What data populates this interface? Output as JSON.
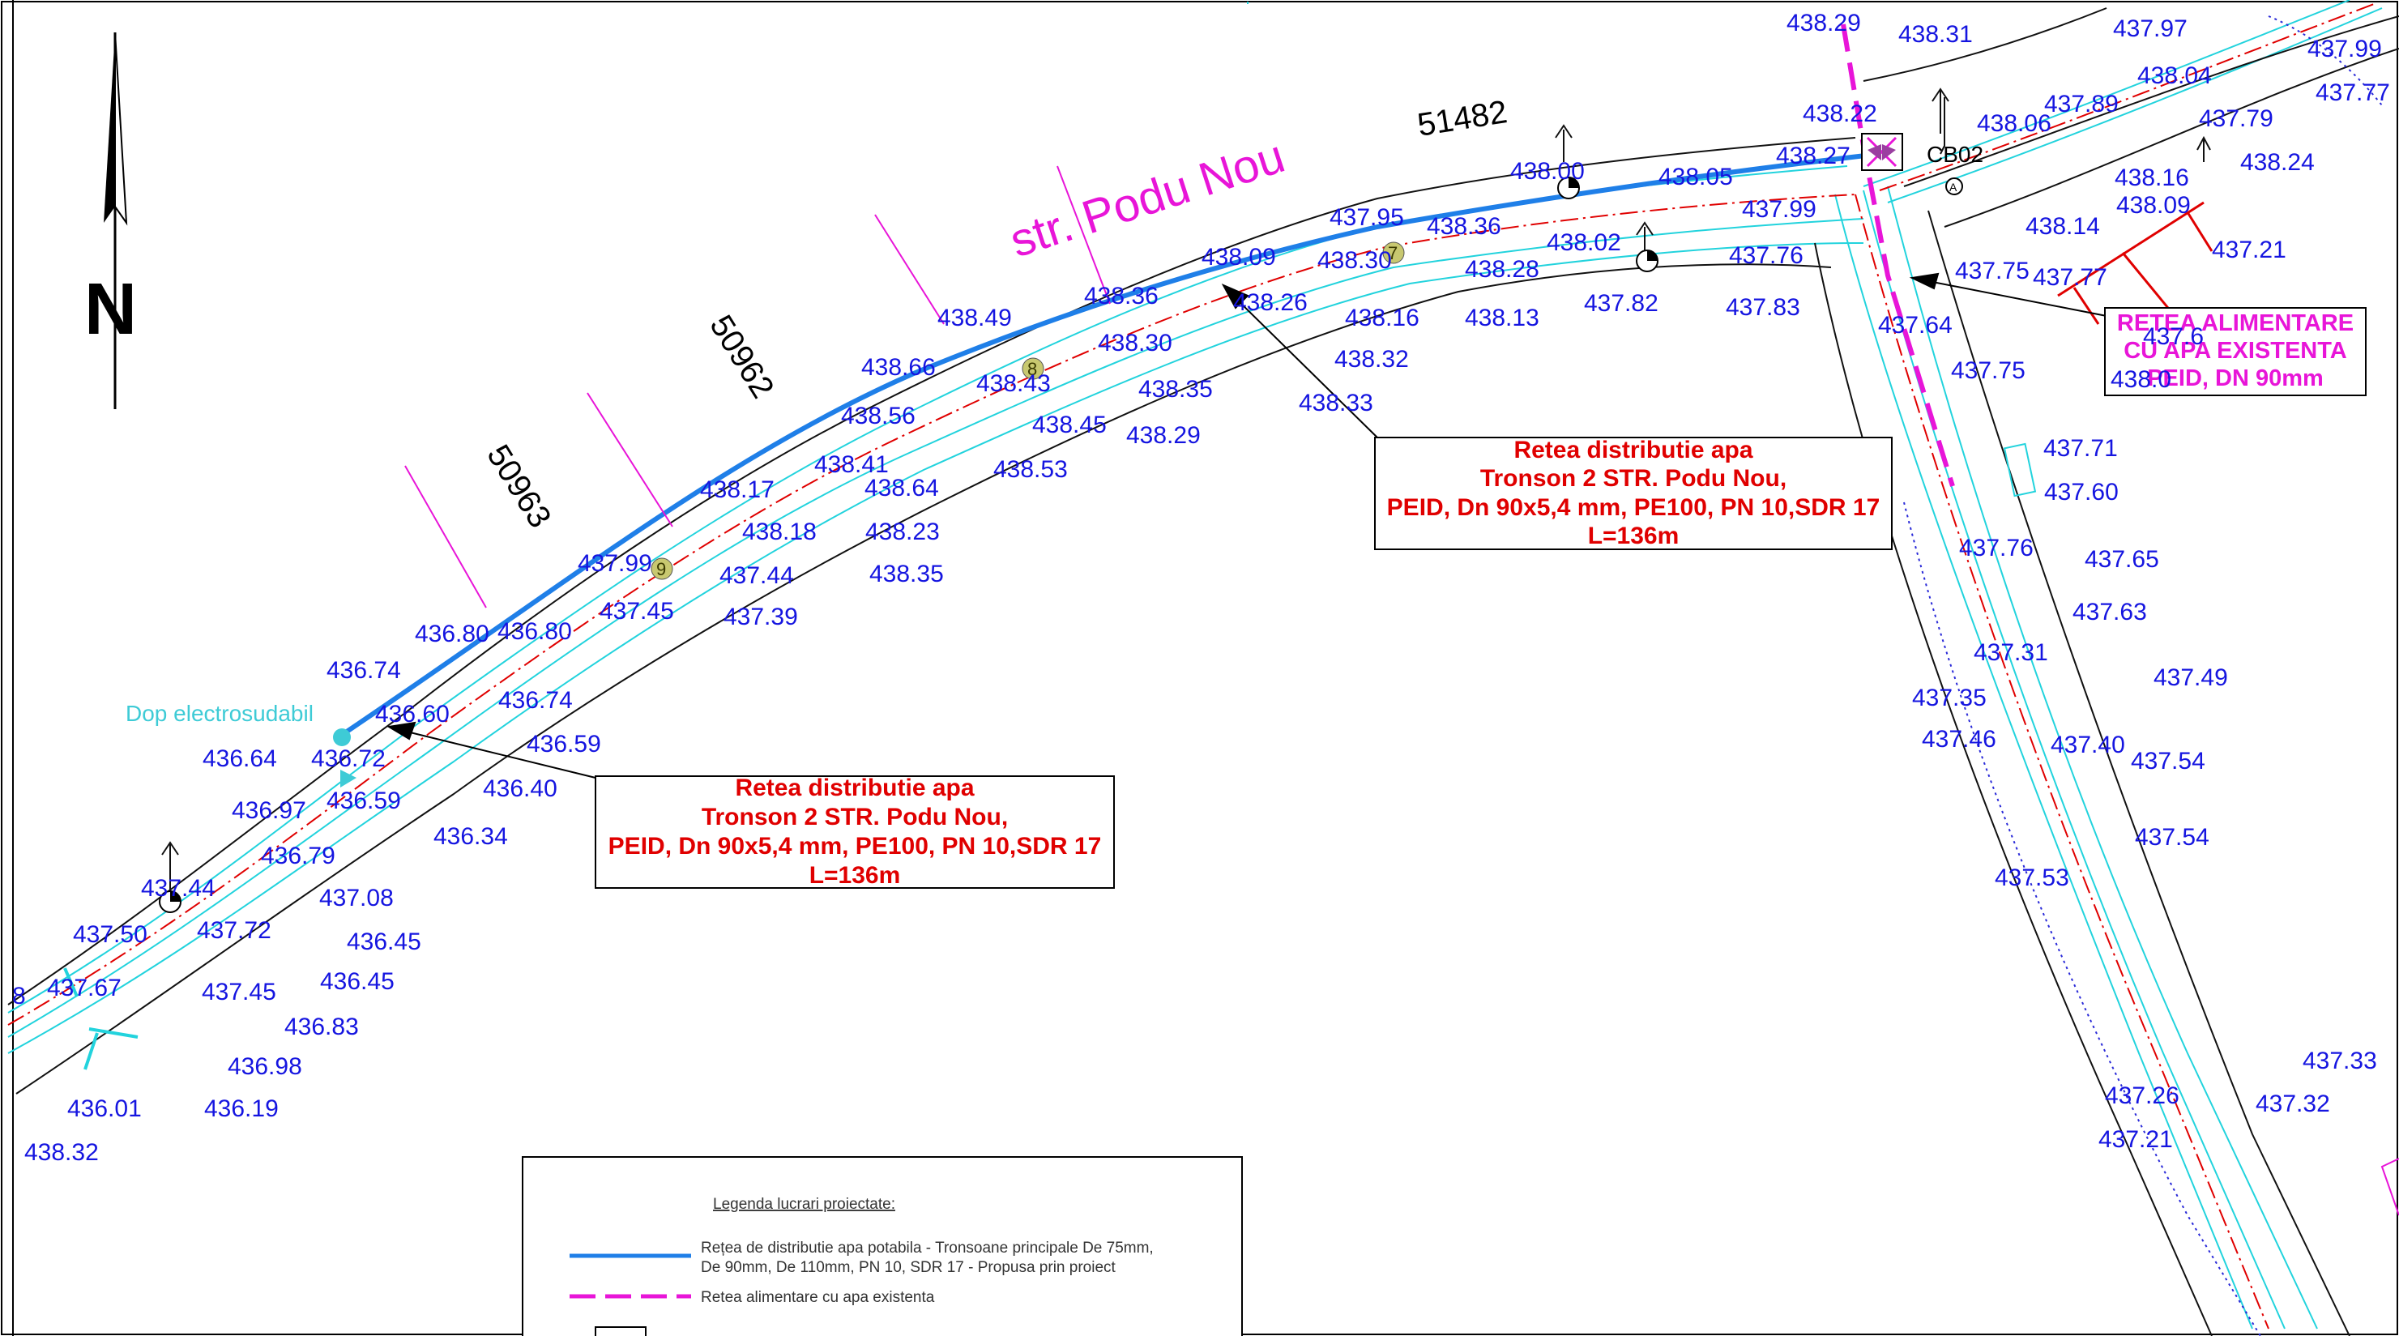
{
  "north_label": "N",
  "street_name": "str. Podu Nou",
  "parcels": [
    "51482",
    "50962",
    "50963"
  ],
  "cb_label": "CB02",
  "dop_label": "Dop electrosudabil",
  "callout": {
    "line1": "Retea distributie apa",
    "line2": "Tronson 2 STR. Podu Nou,",
    "line3": "PEID, Dn 90x5,4 mm, PE100, PN 10,SDR 17",
    "line4": "L=136m"
  },
  "existing_label": {
    "line1": "RETEA ALIMENTARE",
    "line2": "CU APA EXISTENTA",
    "line3": "PEID, DN 90mm"
  },
  "legend": {
    "title": "Legenda lucrari proiectate:",
    "item1_line1": "Rețea de distributie apa potabila - Tronsoane principale De 75mm,",
    "item1_line2": "De 90mm, De 110mm,  PN 10, SDR 17 - Propusa prin proiect",
    "item2": "Retea alimentare cu apa existenta"
  },
  "node_numbers": [
    "7",
    "8",
    "9"
  ],
  "elevations": [
    "438.29",
    "438.31",
    "437.97",
    "437.99",
    "437.77",
    "438.04",
    "437.89",
    "438.06",
    "437.79",
    "438.22",
    "438.27",
    "438.24",
    "438.16",
    "438.09",
    "438.14",
    "437.21",
    "437.75",
    "437.77",
    "437.64",
    "437.6",
    "437.75",
    "438.0",
    "437.71",
    "437.60",
    "437.76",
    "437.65",
    "437.63",
    "437.31",
    "437.49",
    "437.35",
    "437.46",
    "437.40",
    "437.54",
    "437.54",
    "437.53",
    "437.33",
    "437.26",
    "437.32",
    "437.21",
    "438.00",
    "438.05",
    "437.99",
    "437.76",
    "437.83",
    "437.95",
    "438.36",
    "438.02",
    "438.30",
    "438.28",
    "437.82",
    "438.09",
    "438.36",
    "438.26",
    "438.16",
    "438.13",
    "438.32",
    "438.33",
    "438.49",
    "438.66",
    "438.43",
    "438.30",
    "438.35",
    "438.45",
    "438.29",
    "438.53",
    "438.56",
    "438.41",
    "438.17",
    "438.64",
    "438.18",
    "438.23",
    "438.35",
    "437.99",
    "437.44",
    "437.45",
    "437.39",
    "436.80",
    "436.80",
    "436.74",
    "436.74",
    "436.60",
    "436.59",
    "436.64",
    "436.72",
    "436.40",
    "436.97",
    "436.59",
    "436.34",
    "436.79",
    "437.08",
    "437.44",
    "437.50",
    "437.72",
    "436.45",
    "436.45",
    "437.67",
    "437.45",
    "436.83",
    "436.98",
    "436.01",
    "436.19",
    "438.32",
    "8"
  ],
  "colors": {
    "pipe": "#1f7fe8",
    "existing": "#e815d8",
    "axis": "#e00000",
    "edge": "#22d3dd",
    "elev": "#1515e0"
  }
}
